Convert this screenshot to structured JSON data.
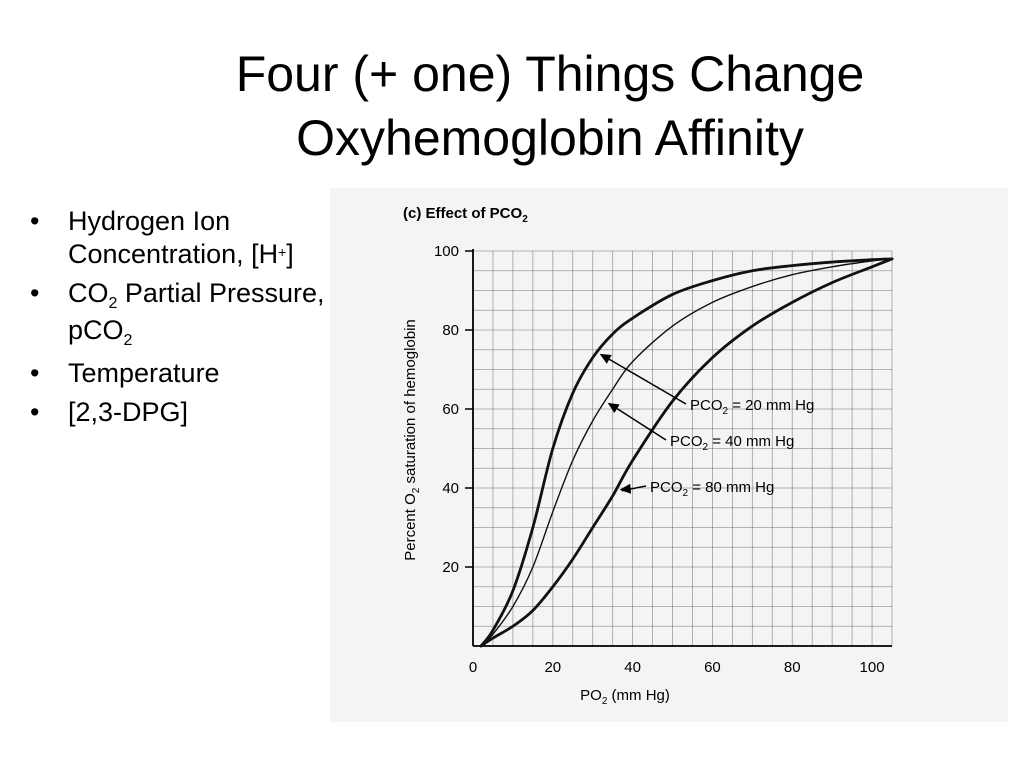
{
  "slide": {
    "title_line1": "Four (+ one) Things Change",
    "title_line2": "Oxyhemoglobin Affinity"
  },
  "bullets": [
    {
      "text": "Hydrogen Ion Concentration, [H",
      "sup": "+",
      "after": "]"
    },
    {
      "text": "CO",
      "sub": "2",
      "after": " Partial Pressure, pCO",
      "sub2": "2"
    },
    {
      "text": "Temperature"
    },
    {
      "text": "[2,3-DPG]"
    }
  ],
  "chart_data": {
    "type": "line",
    "title": "(c) Effect of PCO2",
    "xlabel": "PO2 (mm Hg)",
    "ylabel": "Percent O2 saturation of hemoglobin",
    "xlim": [
      0,
      105
    ],
    "ylim": [
      0,
      100
    ],
    "xticks": [
      0,
      20,
      40,
      60,
      80,
      100
    ],
    "yticks": [
      20,
      40,
      60,
      80,
      100
    ],
    "grid": true,
    "series": [
      {
        "name": "PCO2 = 20 mm Hg",
        "x": [
          2,
          5,
          10,
          15,
          20,
          25,
          30,
          35,
          40,
          50,
          60,
          70,
          80,
          90,
          100,
          105
        ],
        "y": [
          0,
          4,
          14,
          30,
          50,
          64,
          73,
          79,
          83,
          89,
          92.5,
          95,
          96.3,
          97.2,
          97.8,
          98
        ]
      },
      {
        "name": "PCO2 = 40 mm Hg",
        "x": [
          2,
          5,
          10,
          15,
          20,
          25,
          30,
          35,
          40,
          50,
          60,
          70,
          80,
          90,
          100,
          105
        ],
        "y": [
          0,
          3,
          10,
          20,
          34,
          47,
          57,
          65,
          72,
          81,
          87,
          91,
          94,
          96,
          97.5,
          98
        ]
      },
      {
        "name": "PCO2 = 80 mm Hg",
        "x": [
          2,
          5,
          10,
          15,
          20,
          25,
          30,
          35,
          40,
          50,
          60,
          70,
          80,
          90,
          100,
          105
        ],
        "y": [
          0,
          2,
          5,
          9,
          15,
          22,
          30,
          38,
          47,
          62,
          73,
          81,
          87,
          92,
          96,
          98
        ]
      }
    ]
  }
}
